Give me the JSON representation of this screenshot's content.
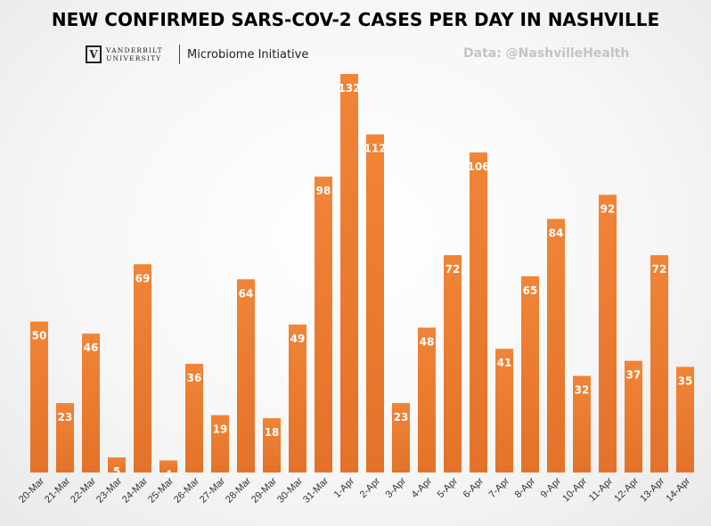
{
  "header": {
    "title": "NEW CONFIRMED SARS-COV-2 CASES PER DAY IN NASHVILLE",
    "logo_mark": "V",
    "logo_line1": "VANDERBILT",
    "logo_line2": "UNIVERSITY",
    "initiative": "Microbiome Initiative",
    "source": "Data: @NashvilleHealth"
  },
  "colors": {
    "bar": "#ea7a2d",
    "label": "#ffffff",
    "tick": "#333333"
  },
  "chart_data": {
    "type": "bar",
    "title": "NEW CONFIRMED SARS-COV-2 CASES PER DAY IN NASHVILLE",
    "xlabel": "",
    "ylabel": "",
    "ylim": [
      0,
      132
    ],
    "grid": false,
    "legend": "none",
    "categories": [
      "20-Mar",
      "21-Mar",
      "22-Mar",
      "23-Mar",
      "24-Mar",
      "25-Mar",
      "26-Mar",
      "27-Mar",
      "28-Mar",
      "29-Mar",
      "30-Mar",
      "31-Mar",
      "1-Apr",
      "2-Apr",
      "3-Apr",
      "4-Apr",
      "5-Apr",
      "6-Apr",
      "7-Apr",
      "8-Apr",
      "9-Apr",
      "10-Apr",
      "11-Apr",
      "12-Apr",
      "13-Apr",
      "14-Apr"
    ],
    "values": [
      50,
      23,
      46,
      5,
      69,
      4,
      36,
      19,
      64,
      18,
      49,
      98,
      132,
      112,
      23,
      48,
      72,
      106,
      41,
      65,
      84,
      32,
      92,
      37,
      72,
      35
    ]
  }
}
